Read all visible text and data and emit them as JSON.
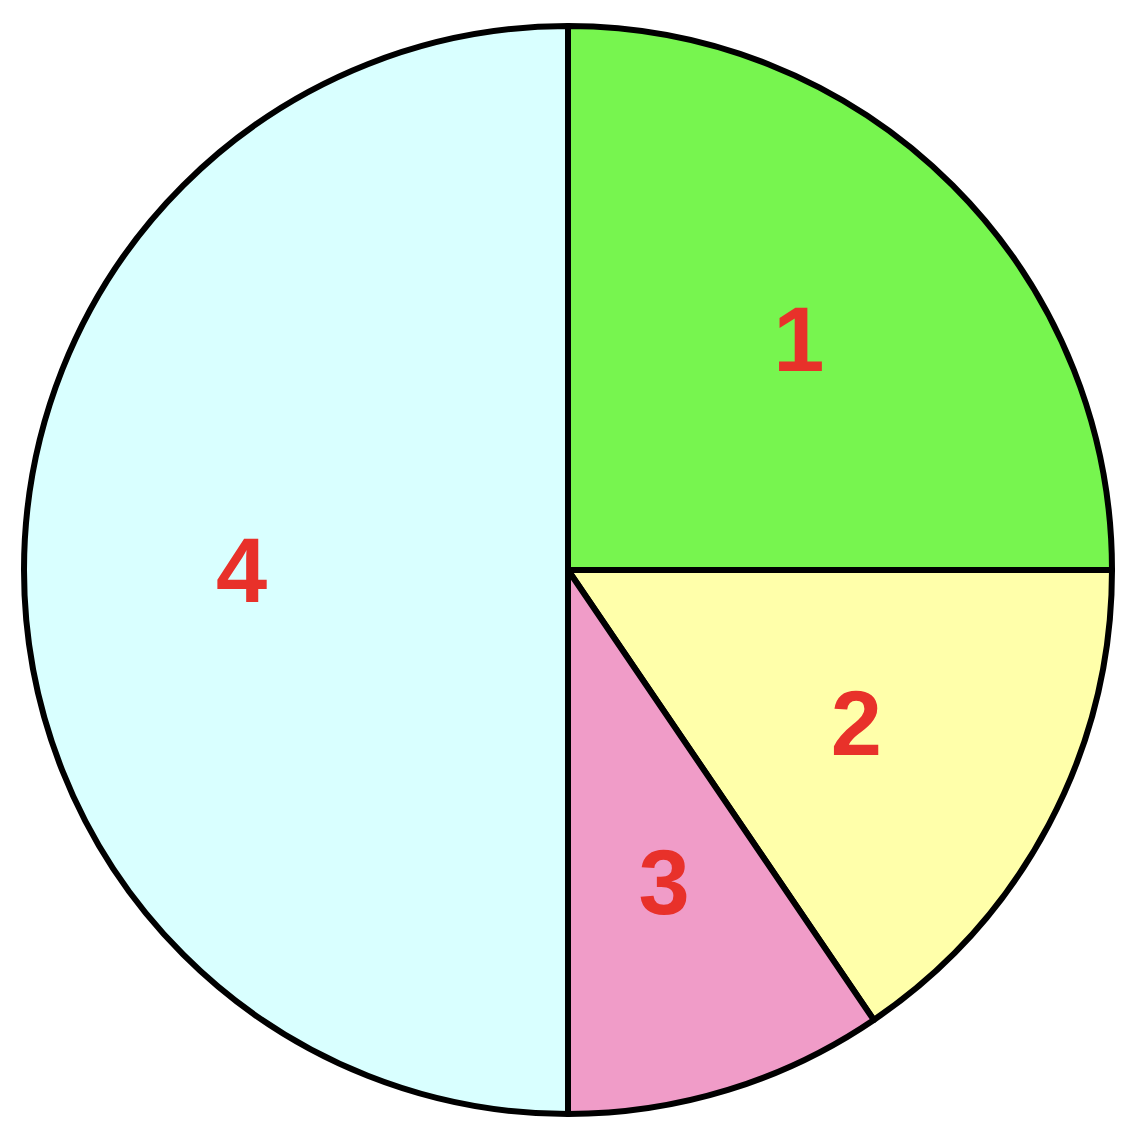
{
  "chart_data": {
    "type": "pie",
    "categories": [
      "1",
      "2",
      "3",
      "4"
    ],
    "values": [
      25,
      15.5,
      9.5,
      50
    ],
    "colors": [
      "#77f54f",
      "#ffffaa",
      "#f09cc8",
      "#d9ffff"
    ]
  }
}
